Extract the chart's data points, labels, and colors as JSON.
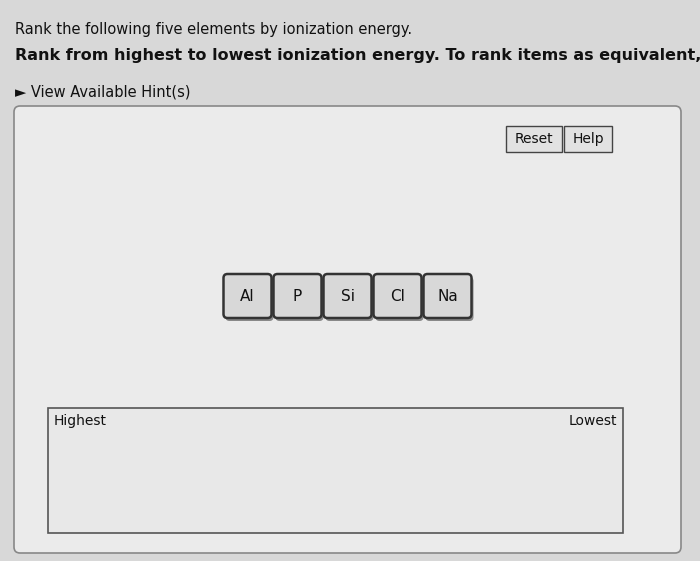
{
  "title_line1": "Rank the following five elements by ionization energy.",
  "title_line2": "Rank from highest to lowest ionization energy. To rank items as equivalent, overlap them.",
  "hint_text": "► View Available Hint(s)",
  "elements": [
    "Al",
    "P",
    "Si",
    "Cl",
    "Na"
  ],
  "button_reset": "Reset",
  "button_help": "Help",
  "label_highest": "Highest",
  "label_lowest": "Lowest",
  "bg_outer": "#c0c0c0",
  "bg_top": "#d8d8d8",
  "panel_bg": "#ebebeb",
  "panel_border": "#888888",
  "btn_face": "#e2e2e2",
  "btn_border": "#444444",
  "elem_face": "#d8d8d8",
  "elem_shadow": "#888888",
  "inner_bg": "#e8e8e8",
  "inner_border": "#555555",
  "text_color": "#111111",
  "title1_fontsize": 10.5,
  "title2_fontsize": 11.5,
  "hint_fontsize": 10.5,
  "element_fontsize": 11,
  "button_fontsize": 10,
  "label_fontsize": 10
}
